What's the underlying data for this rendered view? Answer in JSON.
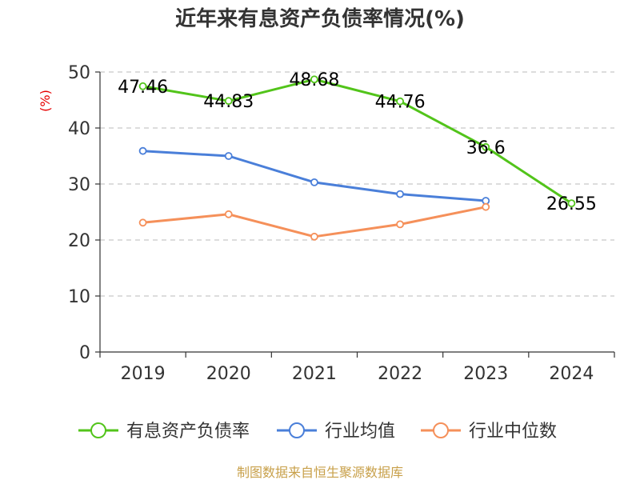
{
  "chart_data": {
    "type": "line",
    "title": "近年来有息资产负债率情况(%)",
    "ylabel": "(%)",
    "xlabel": "",
    "categories": [
      "2019",
      "2020",
      "2021",
      "2022",
      "2023",
      "2024"
    ],
    "ylim": [
      0,
      50
    ],
    "yticks": [
      0,
      10,
      20,
      30,
      40,
      50
    ],
    "grid": true,
    "legend_position": "bottom",
    "series": [
      {
        "name": "有息资产负债率",
        "color": "#52c41a",
        "values": [
          47.46,
          44.83,
          48.68,
          44.76,
          36.6,
          26.55
        ],
        "labels": [
          "47.46",
          "44.83",
          "48.68",
          "44.76",
          "36.6",
          "26.55"
        ]
      },
      {
        "name": "行业均值",
        "color": "#4a7fd9",
        "values": [
          35.9,
          35.0,
          30.3,
          28.2,
          27.0,
          null
        ]
      },
      {
        "name": "行业中位数",
        "color": "#f5905a",
        "values": [
          23.1,
          24.6,
          20.6,
          22.8,
          25.9,
          null
        ]
      }
    ]
  },
  "source": "制图数据来自恒生聚源数据库"
}
